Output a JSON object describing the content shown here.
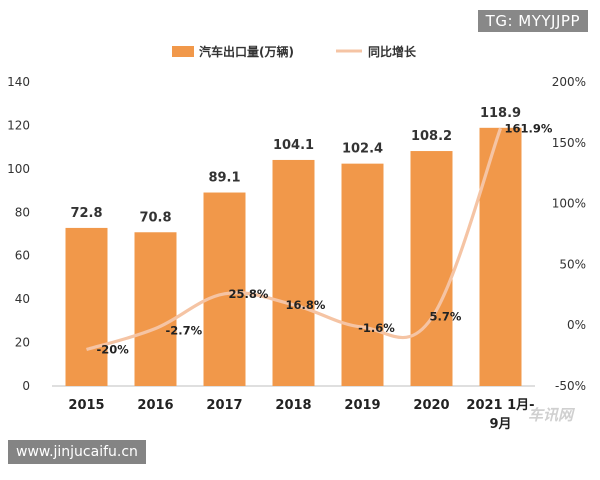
{
  "watermarks": {
    "top": "TG: MYYJJPP",
    "bottom": "www.jinjucaifu.cn",
    "source": "车讯网"
  },
  "colors": {
    "bar": "#F1984A",
    "line": "#F5C4A4",
    "axis": "#bfbfbf"
  },
  "chart_data": {
    "type": "bar",
    "categories": [
      "2015",
      "2016",
      "2017",
      "2018",
      "2019",
      "2020",
      "2021 1月-9月"
    ],
    "category_lines": [
      [
        "2015"
      ],
      [
        "2016"
      ],
      [
        "2017"
      ],
      [
        "2018"
      ],
      [
        "2019"
      ],
      [
        "2020"
      ],
      [
        "2021 1月-",
        "9月"
      ]
    ],
    "series": [
      {
        "name": "汽车出口量(万辆)",
        "type": "bar",
        "axis": "left",
        "values": [
          72.8,
          70.8,
          89.1,
          104.1,
          102.4,
          108.2,
          118.9
        ],
        "labels": [
          "72.8",
          "70.8",
          "89.1",
          "104.1",
          "102.4",
          "108.2",
          "118.9"
        ]
      },
      {
        "name": "同比增长",
        "type": "line",
        "axis": "right",
        "values": [
          -20,
          -2.7,
          25.8,
          16.8,
          -1.6,
          5.7,
          161.9
        ],
        "labels": [
          "-20%",
          "-2.7%",
          "25.8%",
          "16.8%",
          "-1.6%",
          "5.7%",
          "161.9%"
        ]
      }
    ],
    "y_left": {
      "ylim": [
        0,
        140
      ],
      "ticks": [
        0,
        20,
        40,
        60,
        80,
        100,
        120,
        140
      ],
      "tick_labels": [
        "0",
        "20",
        "40",
        "60",
        "80",
        "100",
        "120",
        "140"
      ]
    },
    "y_right": {
      "ylim": [
        -50,
        200
      ],
      "ticks": [
        -50,
        0,
        50,
        100,
        150,
        200
      ],
      "tick_labels": [
        "-50%",
        "0%",
        "50%",
        "100%",
        "150%",
        "200%"
      ]
    },
    "grid": false,
    "legend_position": "top-center"
  }
}
